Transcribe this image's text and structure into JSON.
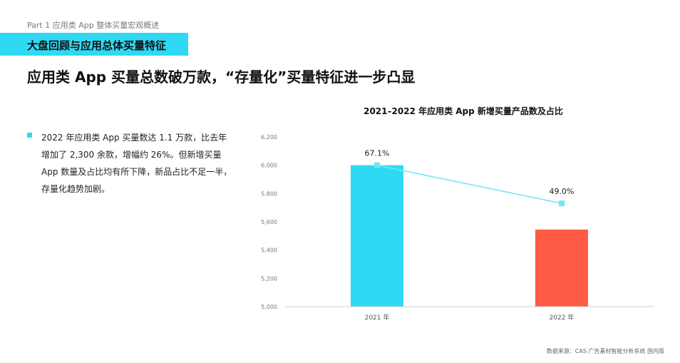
{
  "header": {
    "part_label": "Part 1 应用类 App 整体买量宏观概述",
    "section_title": "大盘回顾与应用总体买量特征",
    "headline": "应用类 App 买量总数破万款，“存量化”买量特征进一步凸显"
  },
  "bullet": {
    "text": "2022 年应用类 App 买量数达 1.1 万款，比去年增加了 2,300 余款，增幅约 26%。但新增买量 App 数量及占比均有所下降，新品占比不足一半，存量化趋势加剧。"
  },
  "colors": {
    "accent": "#2fd9f3",
    "bar_2021": "#2fd9f3",
    "bar_2022": "#ff5a43",
    "line": "#6fe6f7",
    "axis": "#cccccc",
    "tick_text": "#777777"
  },
  "chart_data": {
    "type": "bar",
    "title": "2021–2022 年应用类 App 新增买量产品数及占比",
    "categories": [
      "2021 年",
      "2022 年"
    ],
    "values": [
      6000,
      5545
    ],
    "ylim": [
      5000,
      6200
    ],
    "yticks": [
      5000,
      5200,
      5400,
      5600,
      5800,
      6000,
      6200
    ],
    "ytick_labels": [
      "5,000",
      "5,200",
      "5,400",
      "5,600",
      "5,800",
      "6,000",
      "6,200"
    ],
    "line_series": {
      "values": [
        6000,
        5730
      ],
      "labels": [
        "67.1%",
        "49.0%"
      ]
    },
    "grid": false,
    "xlabel": "",
    "ylabel": ""
  },
  "footer": {
    "source": "数据来源：CAS 广告素材智能分析系统 国内版"
  }
}
